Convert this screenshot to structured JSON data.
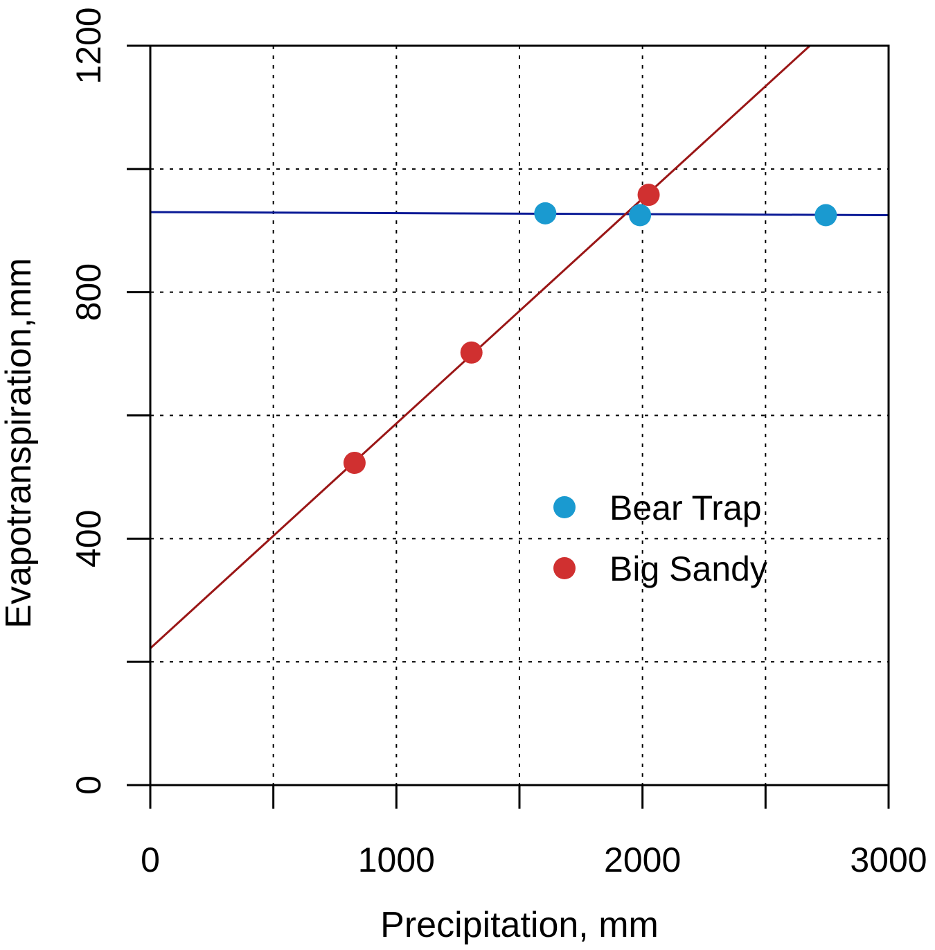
{
  "chart_data": {
    "type": "scatter",
    "title": "",
    "xlabel": "Precipitation, mm",
    "ylabel": "Evapotranspiration,mm",
    "xlim": [
      0,
      3000
    ],
    "ylim": [
      0,
      1200
    ],
    "x_ticks": [
      0,
      500,
      1000,
      1500,
      2000,
      2500,
      3000
    ],
    "x_tick_labels": [
      "0",
      "",
      "1000",
      "",
      "2000",
      "",
      "3000"
    ],
    "y_ticks": [
      0,
      200,
      400,
      600,
      800,
      1000,
      1200
    ],
    "y_tick_labels": [
      "0",
      "",
      "400",
      "",
      "800",
      "",
      "1200"
    ],
    "grid": true,
    "legend_position": "center-right",
    "series": [
      {
        "name": "Bear Trap",
        "color": "#1a9ad0",
        "line_color": "#0a1a96",
        "points": [
          {
            "x": 1605,
            "y": 928
          },
          {
            "x": 1990,
            "y": 925
          },
          {
            "x": 2745,
            "y": 925
          }
        ],
        "fit_line": {
          "x": [
            0,
            3000
          ],
          "y": [
            930,
            925
          ]
        }
      },
      {
        "name": "Big Sandy",
        "color": "#d03030",
        "line_color": "#9a1616",
        "points": [
          {
            "x": 830,
            "y": 523
          },
          {
            "x": 1305,
            "y": 702
          },
          {
            "x": 2025,
            "y": 958
          }
        ],
        "fit_line": {
          "x": [
            0,
            2680
          ],
          "y": [
            222,
            1200
          ]
        }
      }
    ]
  }
}
